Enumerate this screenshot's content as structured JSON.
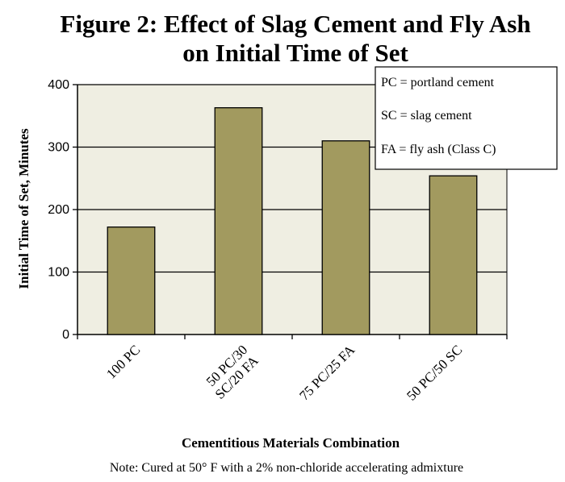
{
  "chart_data": {
    "type": "bar",
    "title_lines": [
      "Figure 2: Effect of Slag Cement and Fly Ash",
      "on Initial Time of Set"
    ],
    "categories": [
      [
        "100 PC"
      ],
      [
        "50 PC/30",
        "SC/20 FA"
      ],
      [
        "75 PC/25 FA"
      ],
      [
        "50 PC/50 SC"
      ]
    ],
    "values": [
      172,
      363,
      310,
      254
    ],
    "xlabel": "Cementitious Materials Combination",
    "ylabel": "Initial Time of Set, Minutes",
    "ylim": [
      0,
      400
    ],
    "yticks": [
      "0",
      "100",
      "200",
      "300",
      "400"
    ],
    "grid": true,
    "legend_position": "top-right",
    "legend_entries": [
      "PC = portland cement",
      "SC = slag cement",
      "FA = fly ash (Class C)"
    ],
    "note": "Note: Cured at 50° F with a 2% non-chloride accelerating admixture",
    "colors": {
      "bar_fill": "#a29a5f",
      "bar_stroke": "#000000",
      "plot_background": "#efeee2",
      "gridline": "#000000"
    }
  }
}
